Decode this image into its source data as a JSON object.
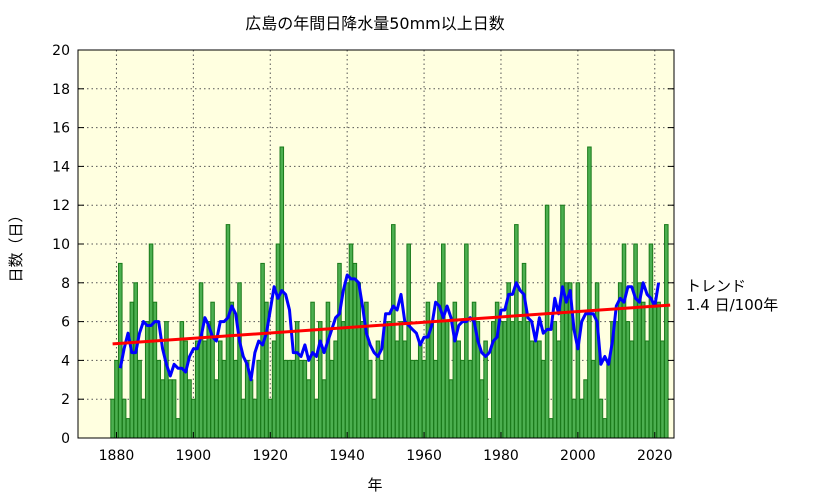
{
  "chart_data": {
    "type": "bar",
    "title": "広島の年間日降水量50mm以上日数",
    "xlabel": "年",
    "ylabel": "日数（日）",
    "xlim": [
      1870,
      2025
    ],
    "ylim": [
      0,
      20
    ],
    "xticks": [
      1880,
      1900,
      1920,
      1940,
      1960,
      1980,
      2000,
      2020
    ],
    "yticks": [
      0,
      2,
      4,
      6,
      8,
      10,
      12,
      14,
      16,
      18,
      20
    ],
    "grid": true,
    "first_year": 1879,
    "values": [
      2,
      4,
      9,
      2,
      1,
      7,
      8,
      4,
      2,
      6,
      10,
      7,
      4,
      3,
      6,
      3,
      3,
      1,
      6,
      5,
      3,
      2,
      5,
      8,
      5,
      6,
      7,
      3,
      5,
      4,
      11,
      7,
      4,
      8,
      2,
      4,
      3,
      2,
      4,
      9,
      7,
      2,
      5,
      10,
      15,
      4,
      4,
      4,
      6,
      4,
      4,
      3,
      7,
      2,
      6,
      3,
      7,
      4,
      5,
      9,
      6,
      8,
      10,
      9,
      8,
      6,
      7,
      4,
      2,
      5,
      4,
      6,
      6,
      11,
      5,
      6,
      5,
      10,
      4,
      4,
      5,
      4,
      7,
      6,
      4,
      8,
      10,
      6,
      3,
      7,
      5,
      4,
      10,
      4,
      7,
      6,
      3,
      5,
      1,
      6,
      7,
      6,
      6,
      8,
      6,
      11,
      6,
      9,
      6,
      5,
      5,
      5,
      4,
      12,
      1,
      6,
      5,
      12,
      8,
      8,
      2,
      8,
      2,
      3,
      15,
      4,
      8,
      2,
      1,
      4,
      6,
      6,
      8,
      10,
      6,
      5,
      10,
      8,
      7,
      5,
      10,
      7,
      7,
      5,
      11
    ],
    "moving_average": {
      "window": 5,
      "color": "#0000ff"
    },
    "trend": {
      "label": "トレンド",
      "rate_label": "1.4 日/100年",
      "start": [
        1879,
        4.85
      ],
      "end": [
        2024,
        6.85
      ],
      "color": "#ff0000"
    },
    "colors": {
      "bar_fill": "#4caf50",
      "bar_edge": "#1a7a1a",
      "plot_bg": "#ffffe0"
    }
  }
}
